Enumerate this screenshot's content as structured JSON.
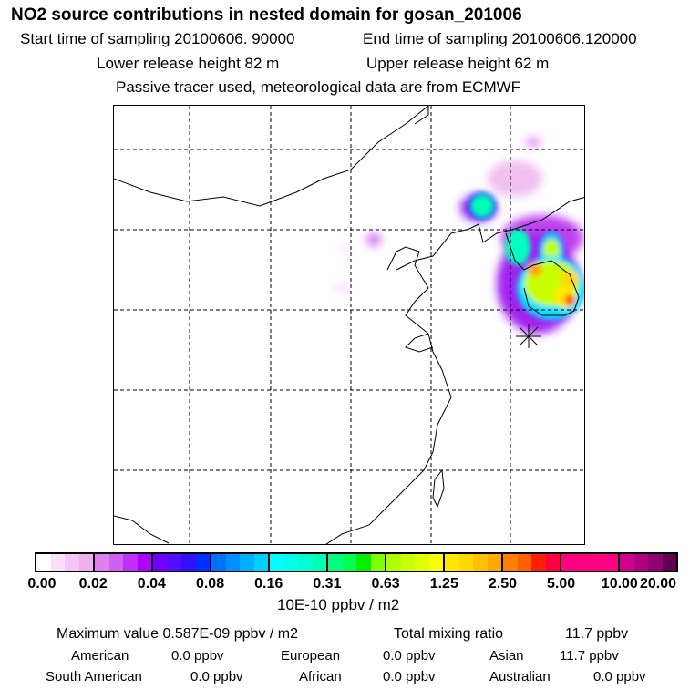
{
  "title": "NO2 source contributions in nested domain for gosan_201006",
  "header": {
    "start": "Start time of sampling 20100606. 90000",
    "end": "End time of sampling 20100606.120000",
    "lower": "Lower release height   82 m",
    "upper": "Upper release height   62 m",
    "note": "Passive tracer used, meteorological data are from ECMWF"
  },
  "colorbar": {
    "ticks": [
      "0.00",
      "0.02",
      "0.04",
      "0.08",
      "0.16",
      "0.31",
      "0.63",
      "1.25",
      "2.50",
      "5.00",
      "10.00",
      "20.00"
    ],
    "unit": "10E-10 ppbv / m2",
    "colors": [
      [
        "#ffffff",
        "#fbe0fb",
        "#f5c6f5",
        "#f0b0f0"
      ],
      [
        "#e080f0",
        "#d060f0",
        "#c030f8",
        "#b000ff"
      ],
      [
        "#7000ff",
        "#5010ff",
        "#3010ff",
        "#0030ff"
      ],
      [
        "#0070ff",
        "#0090ff",
        "#00b0ff",
        "#00d0ff"
      ],
      [
        "#00ffff",
        "#00ffe8",
        "#00ffd0",
        "#00ffb0"
      ],
      [
        "#00ff80",
        "#00ff50",
        "#00f000",
        "#80ff00"
      ],
      [
        "#b0ff00",
        "#c8ff00",
        "#e0ff00",
        "#f8ff00"
      ],
      [
        "#ffe800",
        "#ffd800",
        "#ffc000",
        "#ffa800"
      ],
      [
        "#ff8000",
        "#ff6000",
        "#ff2000",
        "#ff0040"
      ],
      [
        "#ff0080",
        "#ff0080",
        "#ff0080",
        "#ff0080"
      ],
      [
        "#d00090",
        "#b00080",
        "#900070",
        "#600050"
      ]
    ]
  },
  "stats": {
    "max_label": "Maximum value  0.587E-09 ppbv / m2",
    "total_label": "Total mixing ratio",
    "total_value": "11.7 ppbv",
    "regions": [
      {
        "name": "American",
        "value": "0.0 ppbv"
      },
      {
        "name": "European",
        "value": "0.0 ppbv"
      },
      {
        "name": "Asian",
        "value": "11.7 ppbv"
      },
      {
        "name": "South American",
        "value": "0.0 ppbv"
      },
      {
        "name": "African",
        "value": "0.0 ppbv"
      },
      {
        "name": "Australian",
        "value": "0.0 ppbv"
      }
    ]
  }
}
